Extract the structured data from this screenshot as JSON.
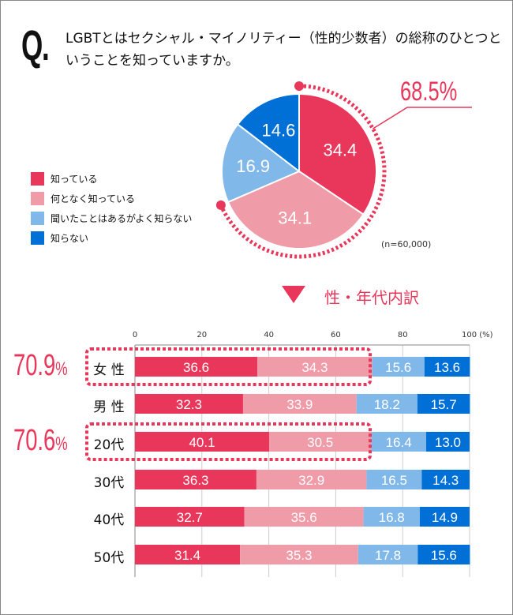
{
  "question": {
    "mark": "Q.",
    "text": "LGBTとはセクシャル・マイノリティー（性的少数者）の総称のひとつということを知っていますか。"
  },
  "legend": [
    {
      "label": "知っている",
      "color": "#e8375a"
    },
    {
      "label": "何となく知っている",
      "color": "#f09ba8"
    },
    {
      "label": "聞いたことはあるがよく知らない",
      "color": "#80b8ea"
    },
    {
      "label": "知らない",
      "color": "#0070d6"
    }
  ],
  "aware_total": "68.5%",
  "sample": "(n=60,000)",
  "breakdown_title": "性・年代内訳",
  "chart_data": [
    {
      "type": "pie",
      "values": [
        34.4,
        34.1,
        16.9,
        14.6
      ],
      "labels": [
        "知っている",
        "何となく知っている",
        "聞いたことはあるがよく知らない",
        "知らない"
      ],
      "colors": [
        "#e8375a",
        "#f09ba8",
        "#80b8ea",
        "#0070d6"
      ]
    },
    {
      "type": "bar",
      "stacked": true,
      "orientation": "horizontal",
      "categories": [
        "女 性",
        "男 性",
        "20代",
        "30代",
        "40代",
        "50代"
      ],
      "x_ticks": [
        "0",
        "20",
        "40",
        "60",
        "80",
        "100 (%)"
      ],
      "xlim": [
        0,
        100
      ],
      "series": [
        {
          "name": "知っている",
          "values": [
            36.6,
            32.3,
            40.1,
            36.3,
            32.7,
            31.4
          ]
        },
        {
          "name": "何となく知っている",
          "values": [
            34.3,
            33.9,
            30.5,
            32.9,
            35.6,
            35.3
          ]
        },
        {
          "name": "聞いたことはあるがよく知らない",
          "values": [
            15.6,
            18.2,
            16.4,
            16.5,
            16.8,
            17.8
          ]
        },
        {
          "name": "知らない",
          "values": [
            13.6,
            15.7,
            13.0,
            14.3,
            14.9,
            15.6
          ]
        }
      ],
      "highlights": [
        {
          "category": "女 性",
          "total": "70.9",
          "unit": "%"
        },
        {
          "category": "20代",
          "total": "70.6",
          "unit": "%"
        }
      ]
    }
  ]
}
